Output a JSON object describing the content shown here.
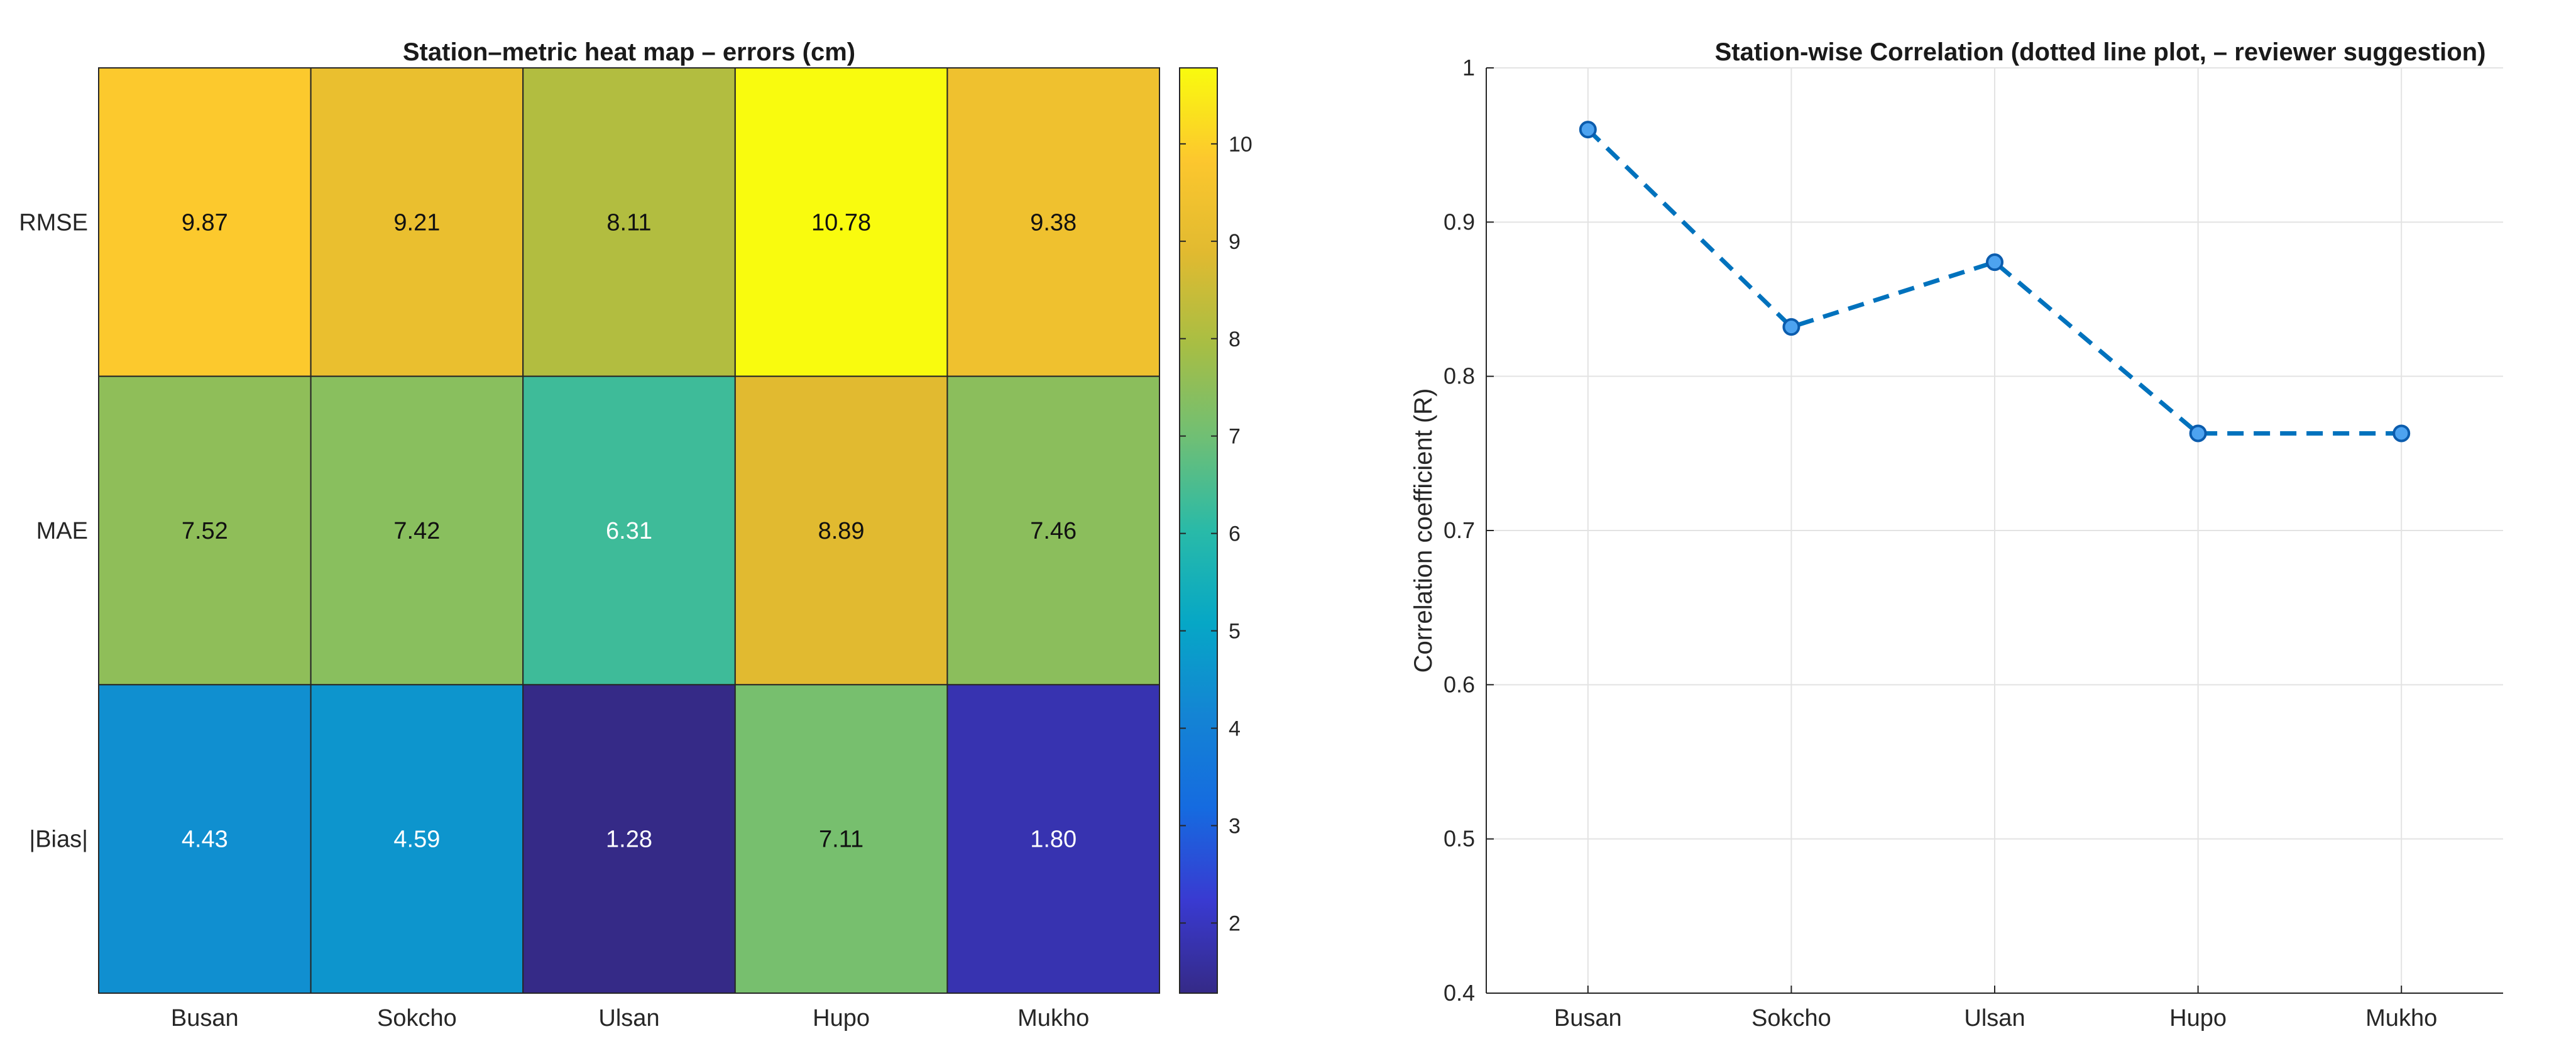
{
  "chart_data": [
    {
      "type": "heatmap",
      "title": "Station–metric heat map – errors (cm)",
      "x_categories": [
        "Busan",
        "Sokcho",
        "Ulsan",
        "Hupo",
        "Mukho"
      ],
      "y_categories": [
        "RMSE",
        "MAE",
        "|Bias|"
      ],
      "values": [
        [
          9.87,
          9.21,
          8.11,
          10.78,
          9.38
        ],
        [
          7.52,
          7.42,
          6.31,
          8.89,
          7.46
        ],
        [
          4.43,
          4.59,
          1.28,
          7.11,
          1.8
        ]
      ],
      "value_labels": [
        [
          "9.87",
          "9.21",
          "8.11",
          "10.78",
          "9.38"
        ],
        [
          "7.52",
          "7.42",
          "6.31",
          "8.89",
          "7.46"
        ],
        [
          "4.43",
          "4.59",
          "1.28",
          "7.11",
          "1.80"
        ]
      ],
      "colormap": "parula",
      "colorbar": {
        "range": [
          1.28,
          10.78
        ],
        "ticks": [
          2,
          3,
          4,
          5,
          6,
          7,
          8,
          9,
          10
        ],
        "tick_labels": [
          "2",
          "3",
          "4",
          "5",
          "6",
          "7",
          "8",
          "9",
          "10"
        ],
        "placement": "right"
      }
    },
    {
      "type": "line",
      "title": "Station-wise Correlation (dotted line plot, – reviewer suggestion)",
      "xlabel": "",
      "ylabel": "Correlation coefficient (R)",
      "categories": [
        "Busan",
        "Sokcho",
        "Ulsan",
        "Hupo",
        "Mukho"
      ],
      "series": [
        {
          "values": [
            0.96,
            0.832,
            0.874,
            0.763,
            0.763
          ]
        }
      ],
      "ylim": [
        0.4,
        1
      ],
      "yticks": [
        0.4,
        0.5,
        0.6,
        0.7,
        0.8,
        0.9,
        1
      ],
      "ytick_labels": [
        "0.4",
        "0.5",
        "0.6",
        "0.7",
        "0.8",
        "0.9",
        "1"
      ],
      "line_style": "dashed",
      "marker": "circle",
      "grid": true,
      "colors": {
        "line": "#0072BD",
        "marker_fill": "#4DA3F0",
        "marker_edge": "#0B5CAD"
      }
    }
  ]
}
